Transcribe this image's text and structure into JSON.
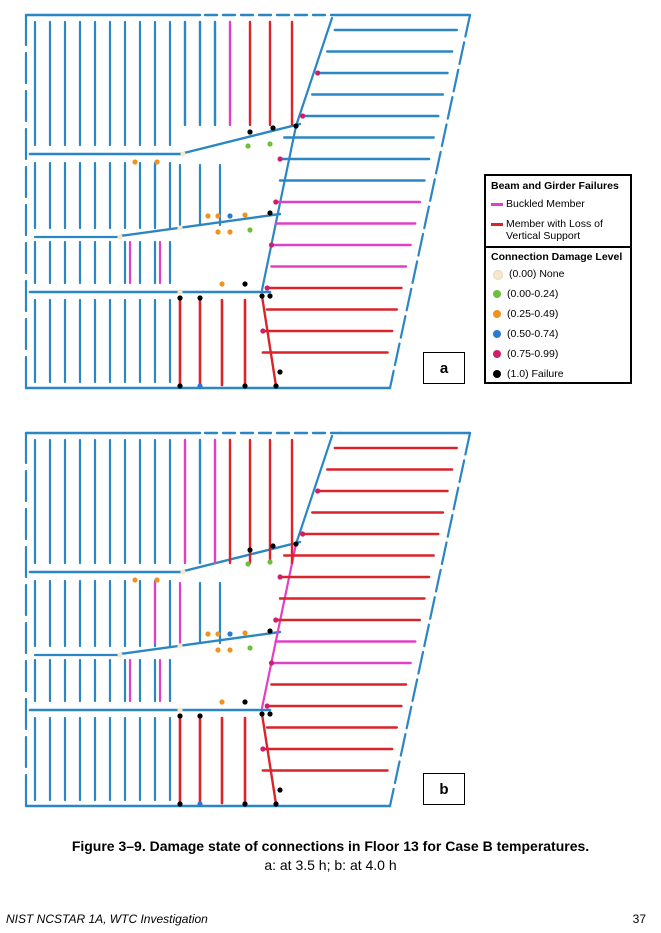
{
  "legend": {
    "beam_heading": "Beam and Girder Failures",
    "buckled_label": "Buckled Member",
    "buckled_color": "#e040c8",
    "loss_label": "Member with Loss of Vertical Support",
    "loss_color": "#d9242a",
    "connection_heading": "Connection Damage Level",
    "levels": [
      {
        "label": "(0.00) None",
        "color": "#f6e6cc"
      },
      {
        "label": "(0.00-0.24)",
        "color": "#6cbf3c"
      },
      {
        "label": "(0.25-0.49)",
        "color": "#f0921e"
      },
      {
        "label": "(0.50-0.74)",
        "color": "#2a7ad4"
      },
      {
        "label": "(0.75-0.99)",
        "color": "#cf1f6a"
      },
      {
        "label": "(1.0) Failure",
        "color": "#000000"
      }
    ]
  },
  "member_color": "#2b86c4",
  "panel_a_label": "a",
  "panel_b_label": "b",
  "caption": {
    "title": "Figure 3–9.  Damage state of connections in Floor 13 for Case B temperatures.",
    "subtitle": "a: at 3.5 h; b: at 4.0 h"
  },
  "footer": {
    "left": "NIST NCSTAR 1A, WTC Investigation",
    "page": "37"
  }
}
